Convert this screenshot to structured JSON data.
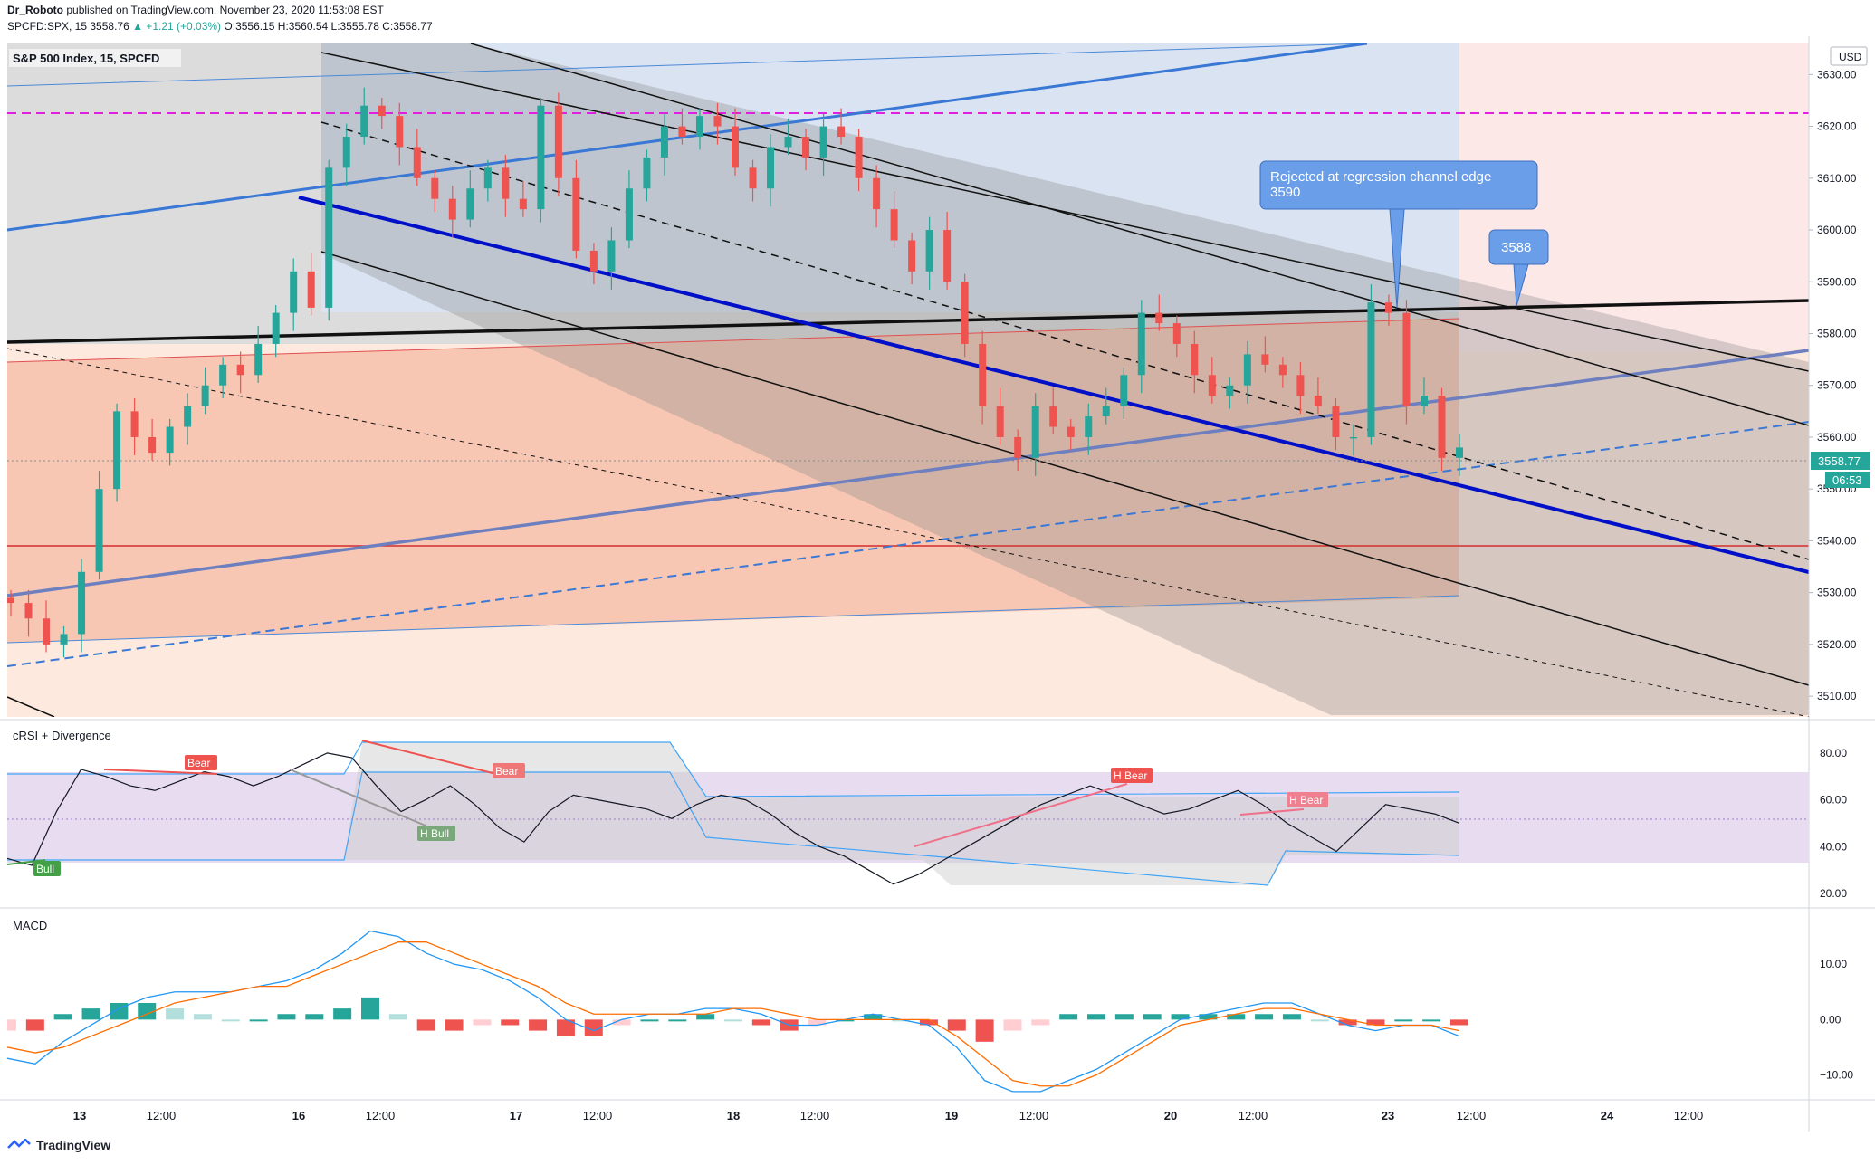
{
  "header": {
    "author": "Dr_Roboto",
    "published_text": "published on TradingView.com, November 23, 2020 11:53:08 EST",
    "symbol_line": "SPCFD:SPX, 15",
    "last": "3558.76",
    "change": "▲ +1.21 (+0.03%)",
    "ohlc": {
      "o": "3556.15",
      "h": "3560.54",
      "l": "3555.78",
      "c": "3558.77"
    }
  },
  "main_pane": {
    "title": "S&P 500 Index, 15, SPCFD",
    "currency_badge": "USD",
    "price_badge": "3558.77",
    "countdown_badge": "06:53",
    "price_ticks": [
      "3630.00",
      "3620.00",
      "3610.00",
      "3600.00",
      "3590.00",
      "3580.00",
      "3570.00",
      "3560.00",
      "3550.00",
      "3540.00",
      "3530.00",
      "3520.00",
      "3510.00"
    ],
    "callouts": [
      {
        "text_line1": "Rejected at regression channel edge",
        "text_line2": "3590"
      },
      {
        "text_line1": "3588",
        "text_line2": ""
      }
    ]
  },
  "crsi_pane": {
    "title": "cRSI + Divergence",
    "ticks": [
      "80.00",
      "60.00",
      "40.00",
      "20.00"
    ],
    "labels": [
      "Bear",
      "Bear",
      "H Bull",
      "Bull",
      "H Bear",
      "H Bear"
    ]
  },
  "macd_pane": {
    "title": "MACD",
    "ticks": [
      "10.00",
      "0.00",
      "−10.00"
    ]
  },
  "time_axis": [
    "13",
    "12:00",
    "16",
    "12:00",
    "17",
    "12:00",
    "18",
    "12:00",
    "19",
    "12:00",
    "20",
    "12:00",
    "23",
    "12:00",
    "24",
    "12:00"
  ],
  "footer": {
    "brand": "TradingView"
  },
  "colors": {
    "up": "#26a69a",
    "down": "#ef5350",
    "channel": "#0000cc",
    "callout": "#6a9ee8"
  },
  "chart_data": {
    "type": "candlestick",
    "title": "S&P 500 Index, 15, SPCFD",
    "ylim": [
      3506,
      3636
    ],
    "y_ticks": [
      3510,
      3520,
      3530,
      3540,
      3550,
      3560,
      3570,
      3580,
      3590,
      3600,
      3610,
      3620,
      3630
    ],
    "x_labels": [
      "13",
      "12:00",
      "16",
      "12:00",
      "17",
      "12:00",
      "18",
      "12:00",
      "19",
      "12:00",
      "20",
      "12:00",
      "23",
      "12:00",
      "24",
      "12:00"
    ],
    "close_path": [
      3528,
      3525,
      3520,
      3522,
      3534,
      3550,
      3565,
      3560,
      3557,
      3562,
      3566,
      3570,
      3574,
      3572,
      3578,
      3584,
      3592,
      3585,
      3612,
      3618,
      3624,
      3622,
      3616,
      3610,
      3606,
      3602,
      3608,
      3612,
      3606,
      3604,
      3624,
      3610,
      3596,
      3592,
      3598,
      3608,
      3614,
      3620,
      3618,
      3622,
      3620,
      3612,
      3608,
      3616,
      3618,
      3614,
      3620,
      3618,
      3610,
      3604,
      3598,
      3592,
      3600,
      3590,
      3578,
      3566,
      3560,
      3556,
      3566,
      3562,
      3560,
      3564,
      3566,
      3572,
      3584,
      3582,
      3578,
      3572,
      3568,
      3570,
      3576,
      3574,
      3572,
      3568,
      3566,
      3560,
      3560,
      3586,
      3584,
      3566,
      3568,
      3556,
      3558
    ],
    "last_price": 3558.77,
    "levels": [
      {
        "name": "resistance",
        "value": 3628
      },
      {
        "name": "support",
        "value": 3542
      }
    ],
    "crsi": {
      "ylim": [
        15,
        90
      ],
      "ticks": [
        20,
        40,
        60,
        80
      ],
      "values": [
        35,
        32,
        55,
        73,
        70,
        66,
        64,
        68,
        72,
        70,
        66,
        70,
        75,
        80,
        78,
        66,
        55,
        60,
        66,
        58,
        48,
        42,
        55,
        62,
        60,
        58,
        56,
        52,
        58,
        62,
        60,
        54,
        46,
        40,
        36,
        30,
        24,
        28,
        34,
        40,
        46,
        52,
        58,
        62,
        66,
        62,
        58,
        54,
        56,
        60,
        64,
        58,
        50,
        44,
        38,
        48,
        58,
        56,
        54,
        50
      ]
    },
    "macd": {
      "ylim": [
        -14,
        20
      ],
      "ticks": [
        -10,
        0,
        10
      ],
      "macd_line": [
        -7,
        -8,
        -4,
        -1,
        2,
        4,
        5,
        5,
        5,
        6,
        7,
        9,
        12,
        16,
        15,
        12,
        10,
        9,
        7,
        4,
        0,
        -2,
        0,
        1,
        1,
        2,
        2,
        1,
        -1,
        -1,
        0,
        1,
        0,
        -1,
        -5,
        -11,
        -13,
        -13,
        -11,
        -9,
        -6,
        -3,
        0,
        1,
        2,
        3,
        3,
        1,
        -1,
        -2,
        -1,
        -1,
        -3
      ],
      "signal_line": [
        -5,
        -6,
        -5,
        -3,
        -1,
        1,
        3,
        4,
        5,
        6,
        6,
        8,
        10,
        12,
        14,
        14,
        12,
        10,
        8,
        6,
        3,
        1,
        1,
        1,
        1,
        1,
        2,
        2,
        1,
        0,
        0,
        0,
        0,
        0,
        -3,
        -7,
        -11,
        -12,
        -12,
        -10,
        -7,
        -4,
        -1,
        0,
        1,
        2,
        2,
        1,
        0,
        -1,
        -1,
        -1,
        -2
      ],
      "histogram": [
        -2,
        -2,
        1,
        2,
        3,
        3,
        2,
        1,
        0,
        0,
        1,
        1,
        2,
        4,
        1,
        -2,
        -2,
        -1,
        -1,
        -2,
        -3,
        -3,
        -1,
        0,
        0,
        1,
        0,
        -1,
        -2,
        -1,
        0,
        1,
        0,
        -1,
        -2,
        -4,
        -2,
        -1,
        1,
        1,
        1,
        1,
        1,
        1,
        1,
        1,
        1,
        0,
        -1,
        -1,
        0,
        0,
        -1
      ]
    }
  }
}
